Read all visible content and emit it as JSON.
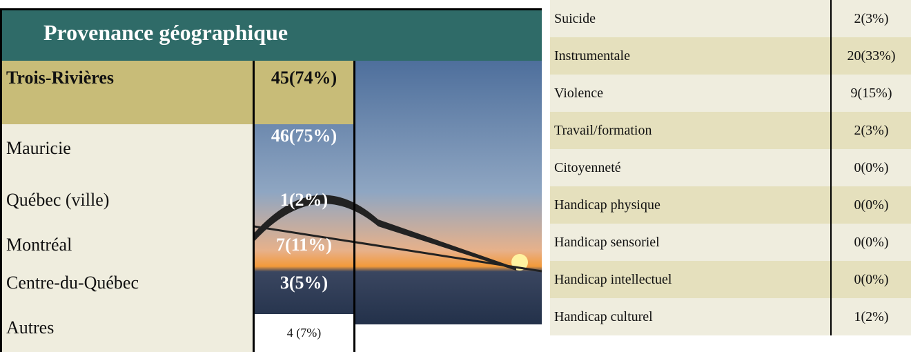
{
  "header": {
    "title": "Provenance géographique"
  },
  "table": {
    "rows": [
      [
        "Trois-Rivières",
        "45(74%)"
      ],
      [
        "Mauricie",
        "46(75%)"
      ],
      [
        "Québec (ville)",
        "1(2%)"
      ],
      [
        "Montréal",
        "7(11%)"
      ],
      [
        "Centre-du-Québec",
        "3(5%)"
      ],
      [
        "Autres",
        "4 (7%)"
      ]
    ]
  },
  "right_table": {
    "rows": [
      [
        "Suicide",
        "2(3%)"
      ],
      [
        "Instrumentale",
        "20(33%)"
      ],
      [
        "Violence",
        "9(15%)"
      ],
      [
        "Travail/formation",
        "2(3%)"
      ],
      [
        "Citoyenneté",
        "0(0%)"
      ],
      [
        "Handicap physique",
        "0(0%)"
      ],
      [
        "Handicap sensoriel",
        "0(0%)"
      ],
      [
        "Handicap intellectuel",
        "0(0%)"
      ],
      [
        "Handicap culturel",
        "1(2%)"
      ]
    ]
  }
}
